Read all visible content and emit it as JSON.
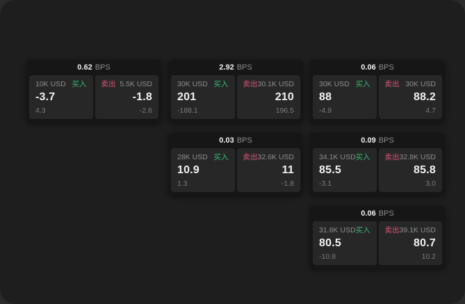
{
  "page": {
    "buy_label": "买入",
    "sell_label": "卖出",
    "bps_unit": "BPS"
  },
  "colors": {
    "backdrop": "#2b2b2b",
    "surface": "#1e1e1e",
    "card": "#161616",
    "tile": "#272727",
    "buy_green": "#35b975",
    "sell_rose": "#da5475",
    "price_white": "#f2f2f2",
    "label_gray": "#8e8e8e",
    "delta_gray": "#7b7b7b"
  },
  "cards": [
    {
      "bps": "0.62",
      "grid": {
        "row": 1,
        "col": 1
      },
      "buy": {
        "amount": "10K USD",
        "price": "-3.7",
        "delta": "4.3"
      },
      "sell": {
        "amount": "5.5K USD",
        "price": "-1.8",
        "delta": "-2.6"
      }
    },
    {
      "bps": "2.92",
      "grid": {
        "row": 1,
        "col": 2
      },
      "buy": {
        "amount": "30K USD",
        "price": "201",
        "delta": "-188.1"
      },
      "sell": {
        "amount": "30.1K USD",
        "price": "210",
        "delta": "196.5"
      }
    },
    {
      "bps": "0.06",
      "grid": {
        "row": 1,
        "col": 3
      },
      "buy": {
        "amount": "30K USD",
        "price": "88",
        "delta": "-4.9"
      },
      "sell": {
        "amount": "30K USD",
        "price": "88.2",
        "delta": "4.7"
      }
    },
    {
      "bps": "0.03",
      "grid": {
        "row": 2,
        "col": 2
      },
      "buy": {
        "amount": "28K USD",
        "price": "10.9",
        "delta": "1.3"
      },
      "sell": {
        "amount": "32.6K USD",
        "price": "11",
        "delta": "-1.8"
      }
    },
    {
      "bps": "0.09",
      "grid": {
        "row": 2,
        "col": 3
      },
      "buy": {
        "amount": "34.1K USD",
        "price": "85.5",
        "delta": "-3.1"
      },
      "sell": {
        "amount": "32.8K USD",
        "price": "85.8",
        "delta": "3.0"
      }
    },
    {
      "bps": "0.06",
      "grid": {
        "row": 3,
        "col": 3
      },
      "buy": {
        "amount": "31.8K USD",
        "price": "80.5",
        "delta": "-10.8"
      },
      "sell": {
        "amount": "39.1K USD",
        "price": "80.7",
        "delta": "10.2"
      }
    }
  ]
}
